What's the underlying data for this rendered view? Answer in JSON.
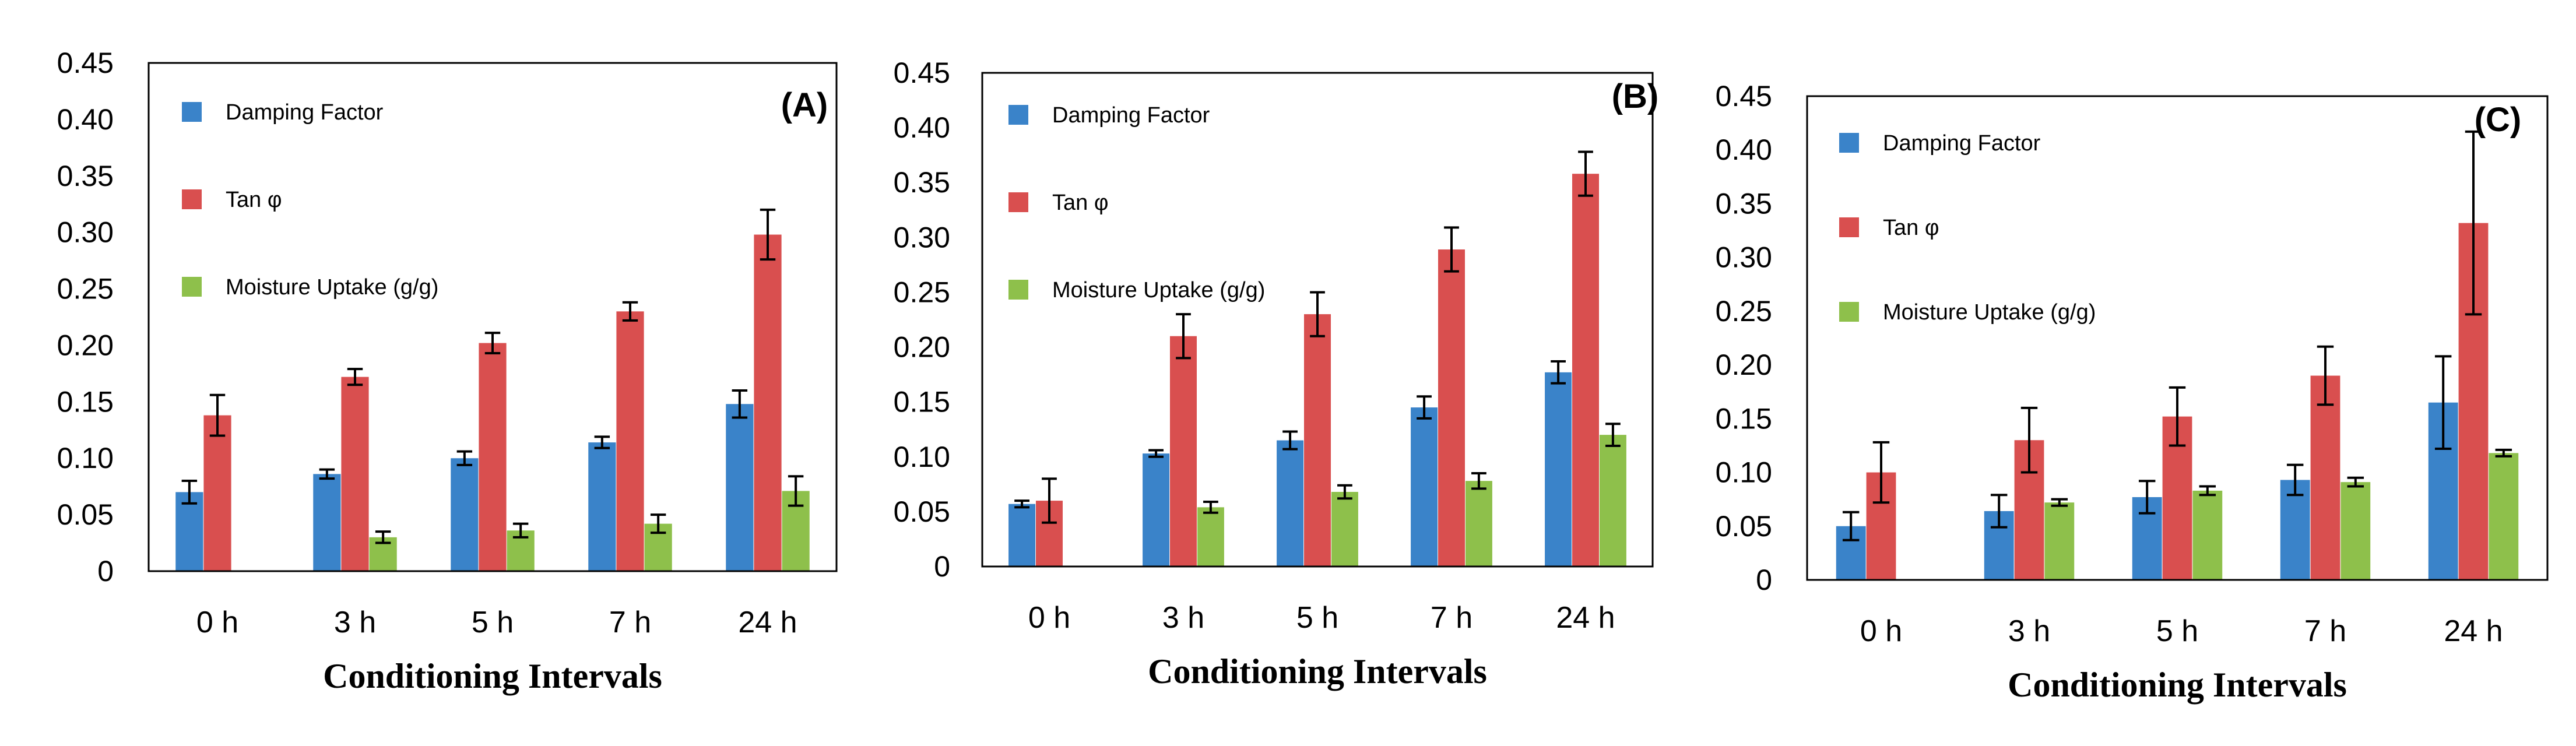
{
  "colors": {
    "damping": "#3a83c9",
    "tan": "#d94f4f",
    "moisture": "#8ec04b"
  },
  "chart_data": [
    {
      "type": "bar",
      "panel_label": "(A)",
      "title": "",
      "xlabel": "Conditioning Intervals",
      "ylabel": "",
      "ylim": [
        0,
        0.45
      ],
      "y_ticks": [
        "0",
        "0.05",
        "0.10",
        "0.15",
        "0.20",
        "0.25",
        "0.30",
        "0.35",
        "0.40",
        "0.45"
      ],
      "categories": [
        "0 h",
        "3 h",
        "5 h",
        "7 h",
        "24 h"
      ],
      "legend_position": "top-left",
      "series": [
        {
          "name": "Damping Factor",
          "values": [
            0.07,
            0.086,
            0.1,
            0.114,
            0.148
          ],
          "errors": [
            0.01,
            0.004,
            0.006,
            0.005,
            0.012
          ]
        },
        {
          "name": "Tan φ",
          "values": [
            0.138,
            0.172,
            0.202,
            0.23,
            0.298
          ],
          "errors": [
            0.018,
            0.007,
            0.009,
            0.008,
            0.022
          ]
        },
        {
          "name": "Moisture Uptake (g/g)",
          "values": [
            null,
            0.03,
            0.036,
            0.042,
            0.071
          ],
          "errors": [
            null,
            0.005,
            0.006,
            0.008,
            0.013
          ]
        }
      ]
    },
    {
      "type": "bar",
      "panel_label": "(B)",
      "title": "",
      "xlabel": "Conditioning Intervals",
      "ylabel": "",
      "ylim": [
        0,
        0.45
      ],
      "y_ticks": [
        "0",
        "0.05",
        "0.10",
        "0.15",
        "0.20",
        "0.25",
        "0.30",
        "0.35",
        "0.40",
        "0.45"
      ],
      "categories": [
        "0 h",
        "3 h",
        "5 h",
        "7 h",
        "24 h"
      ],
      "legend_position": "top-left",
      "series": [
        {
          "name": "Damping Factor",
          "values": [
            0.057,
            0.103,
            0.115,
            0.145,
            0.177
          ],
          "errors": [
            0.003,
            0.003,
            0.008,
            0.01,
            0.01
          ]
        },
        {
          "name": "Tan φ",
          "values": [
            0.06,
            0.21,
            0.23,
            0.289,
            0.358
          ],
          "errors": [
            0.02,
            0.02,
            0.02,
            0.02,
            0.02
          ]
        },
        {
          "name": "Moisture Uptake (g/g)",
          "values": [
            null,
            0.054,
            0.068,
            0.078,
            0.12
          ],
          "errors": [
            null,
            0.005,
            0.006,
            0.007,
            0.01
          ]
        }
      ]
    },
    {
      "type": "bar",
      "panel_label": "(C)",
      "title": "",
      "xlabel": "Conditioning Intervals",
      "ylabel": "",
      "ylim": [
        0,
        0.45
      ],
      "y_ticks": [
        "0",
        "0.05",
        "0.10",
        "0.15",
        "0.20",
        "0.25",
        "0.30",
        "0.35",
        "0.40",
        "0.45"
      ],
      "categories": [
        "0 h",
        "3 h",
        "5 h",
        "7 h",
        "24 h"
      ],
      "legend_position": "top-left",
      "series": [
        {
          "name": "Damping Factor",
          "values": [
            0.05,
            0.064,
            0.077,
            0.093,
            0.165
          ],
          "errors": [
            0.013,
            0.015,
            0.015,
            0.014,
            0.043
          ]
        },
        {
          "name": "Tan φ",
          "values": [
            0.1,
            0.13,
            0.152,
            0.19,
            0.332
          ],
          "errors": [
            0.028,
            0.03,
            0.027,
            0.027,
            0.085
          ]
        },
        {
          "name": "Moisture Uptake (g/g)",
          "values": [
            null,
            0.072,
            0.083,
            0.091,
            0.118
          ],
          "errors": [
            null,
            0.003,
            0.004,
            0.004,
            0.003
          ]
        }
      ]
    }
  ]
}
